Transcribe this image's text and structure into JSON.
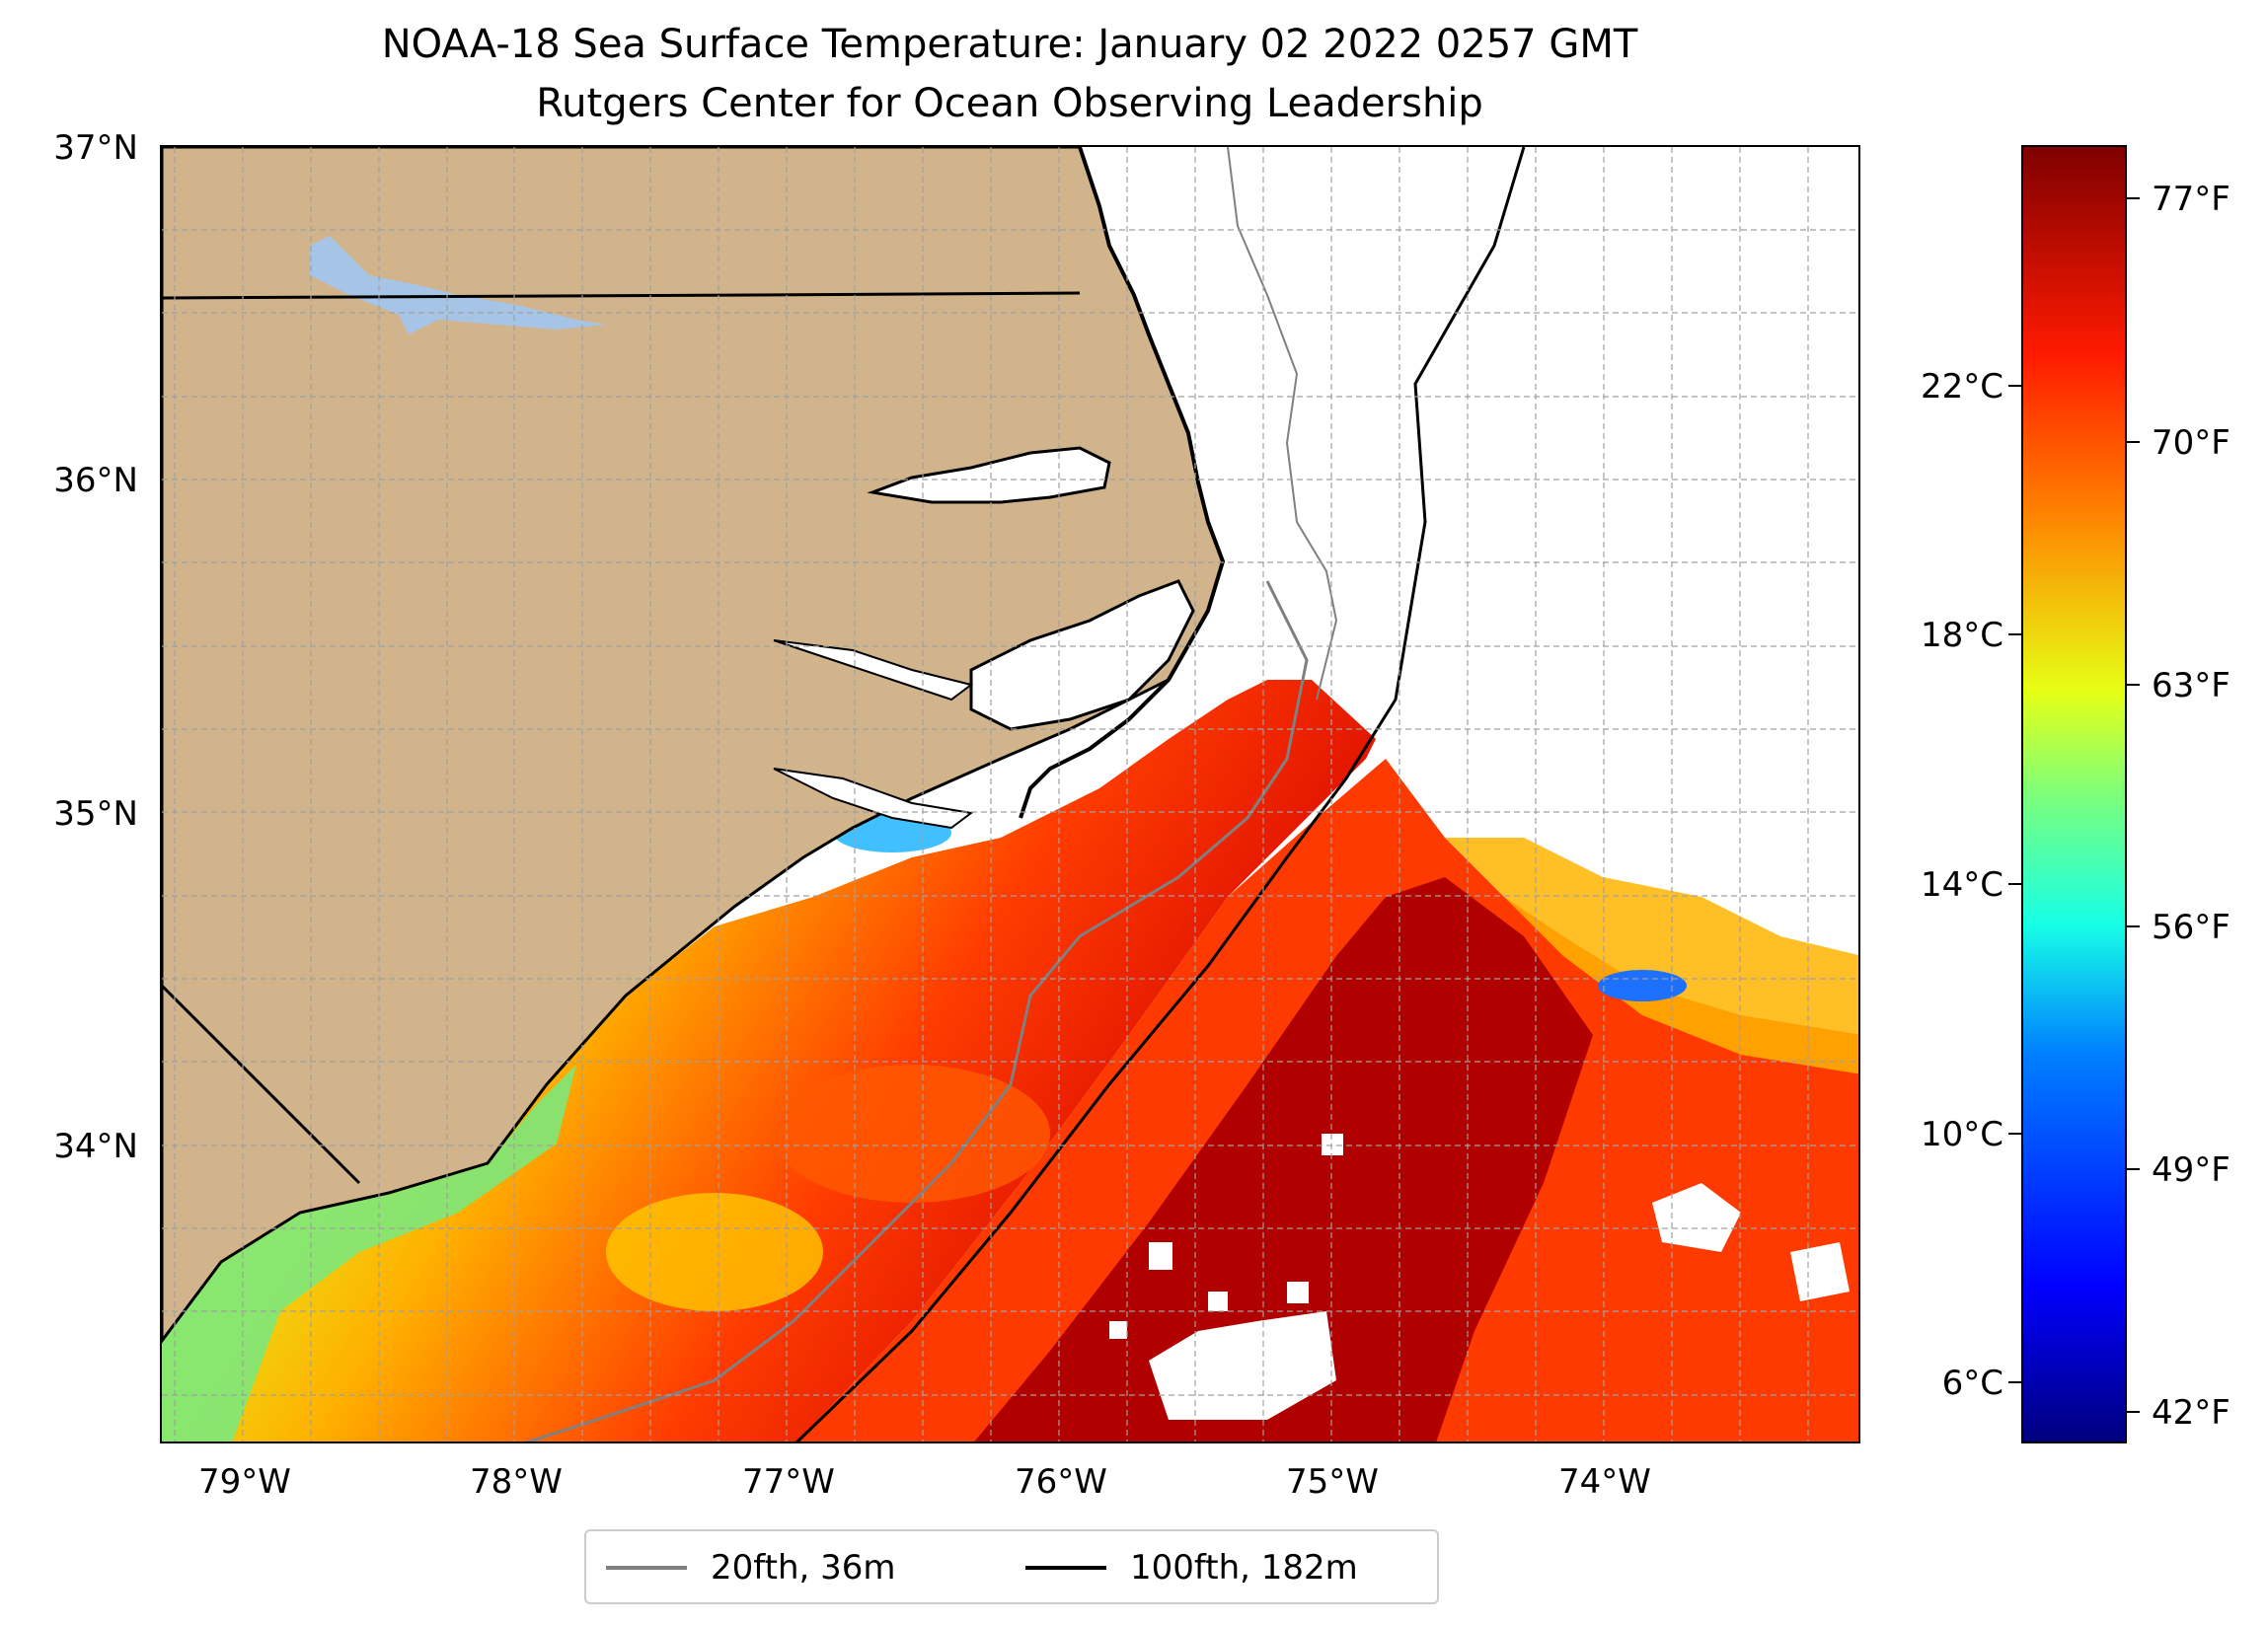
{
  "title": {
    "line1": "NOAA-18 Sea Surface Temperature: January 02 2022 0257 GMT",
    "line2": "Rutgers Center for Ocean Observing Leadership"
  },
  "map": {
    "lat_labels": [
      "37°N",
      "36°N",
      "35°N",
      "34°N"
    ],
    "lon_labels": [
      "79°W",
      "78°W",
      "77°W",
      "76°W",
      "75°W",
      "74°W"
    ],
    "extent": {
      "lon_min": -79.3,
      "lon_max": -73.05,
      "lat_min": 33.1,
      "lat_max": 37.0
    },
    "colors": {
      "land": "#d2b48c",
      "lakes": "#a6c4e6",
      "no_data": "#ffffff",
      "grid": "#a0a0a0"
    }
  },
  "colorbar": {
    "celsius_labels": [
      "22°C",
      "18°C",
      "14°C",
      "10°C",
      "6°C"
    ],
    "fahrenheit_labels": [
      "77°F",
      "70°F",
      "63°F",
      "56°F",
      "49°F",
      "42°F"
    ],
    "colormap": "jet"
  },
  "legend": {
    "items": [
      {
        "label": "20fth, 36m",
        "color": "#808080"
      },
      {
        "label": "100fth, 182m",
        "color": "#000000"
      }
    ]
  }
}
